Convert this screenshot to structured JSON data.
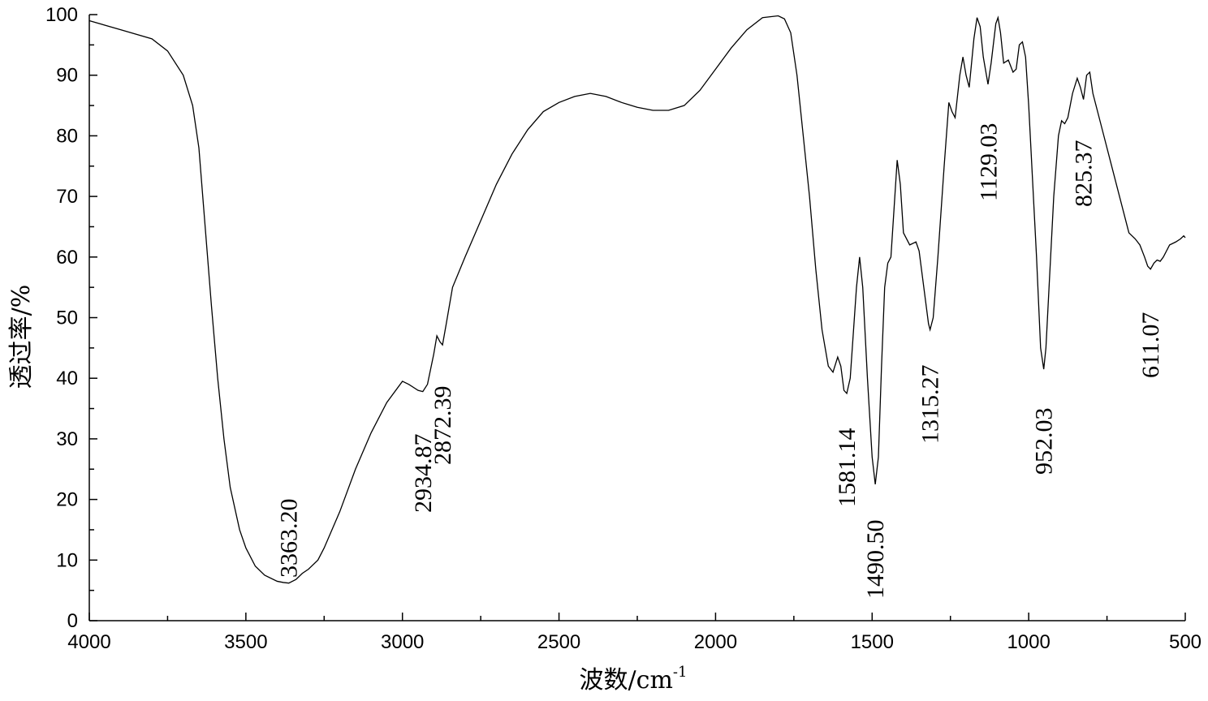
{
  "chart_data": {
    "type": "line",
    "xlabel": "波数/cm",
    "xlabel_superscript": "-1",
    "ylabel": "透过率/%",
    "xlim": [
      4000,
      500
    ],
    "ylim": [
      0,
      100
    ],
    "xticks": [
      4000,
      3500,
      3000,
      2500,
      2000,
      1500,
      1000,
      500
    ],
    "xminorticks": [
      3750,
      3250,
      2750,
      2250,
      1750,
      1250,
      750
    ],
    "yticks": [
      0,
      10,
      20,
      30,
      40,
      50,
      60,
      70,
      80,
      90,
      100
    ],
    "yminorticks": [
      5,
      15,
      25,
      35,
      45,
      55,
      65,
      75,
      85,
      95
    ],
    "color": "#000000",
    "x": [
      4000,
      3900,
      3800,
      3750,
      3700,
      3670,
      3650,
      3630,
      3610,
      3590,
      3570,
      3550,
      3520,
      3500,
      3470,
      3440,
      3400,
      3380,
      3363,
      3340,
      3320,
      3300,
      3270,
      3250,
      3200,
      3150,
      3100,
      3050,
      3000,
      2980,
      2950,
      2935,
      2920,
      2900,
      2890,
      2880,
      2872,
      2860,
      2840,
      2800,
      2750,
      2700,
      2650,
      2600,
      2550,
      2500,
      2450,
      2400,
      2350,
      2300,
      2250,
      2200,
      2150,
      2100,
      2050,
      2000,
      1950,
      1900,
      1850,
      1800,
      1780,
      1760,
      1740,
      1720,
      1700,
      1680,
      1660,
      1640,
      1625,
      1610,
      1600,
      1590,
      1581,
      1570,
      1550,
      1540,
      1530,
      1515,
      1500,
      1490,
      1480,
      1470,
      1460,
      1450,
      1440,
      1430,
      1420,
      1410,
      1400,
      1380,
      1360,
      1350,
      1335,
      1320,
      1315,
      1305,
      1290,
      1270,
      1255,
      1245,
      1235,
      1220,
      1210,
      1200,
      1190,
      1175,
      1165,
      1155,
      1145,
      1130,
      1120,
      1105,
      1098,
      1090,
      1080,
      1065,
      1050,
      1040,
      1030,
      1020,
      1010,
      1000,
      990,
      975,
      962,
      952,
      945,
      935,
      920,
      905,
      895,
      885,
      875,
      860,
      845,
      835,
      825,
      815,
      805,
      795,
      780,
      760,
      740,
      720,
      700,
      680,
      660,
      645,
      630,
      620,
      611,
      600,
      590,
      580,
      570,
      550,
      530,
      515,
      505,
      500
    ],
    "values": [
      99,
      97.5,
      96,
      94,
      90,
      85,
      78,
      65,
      52,
      40,
      30,
      22,
      15,
      12,
      9,
      7.5,
      6.5,
      6.3,
      6.2,
      6.8,
      7.8,
      8.5,
      10,
      12,
      18,
      25,
      31,
      36,
      39.5,
      39,
      38,
      37.8,
      39,
      44,
      47,
      46,
      45.5,
      49,
      55,
      60,
      66,
      72,
      77,
      81,
      84,
      85.5,
      86.5,
      87,
      86.5,
      85.5,
      84.7,
      84.2,
      84.2,
      85,
      87.5,
      91,
      94.5,
      97.5,
      99.5,
      99.8,
      99.3,
      97,
      90,
      80,
      70,
      58,
      48,
      42,
      41,
      43.5,
      42,
      38,
      37.5,
      40,
      55,
      60,
      55,
      40,
      27,
      22.5,
      27,
      42,
      55,
      59,
      60,
      68,
      76,
      72,
      64,
      62,
      62.5,
      61,
      55,
      49,
      48,
      50,
      60,
      75,
      85.5,
      84,
      83,
      90,
      93,
      90,
      88,
      96,
      99.5,
      98,
      93,
      88.5,
      92,
      98.5,
      99.5,
      97,
      92,
      92.5,
      90.5,
      91,
      95,
      95.5,
      93,
      85,
      75,
      60,
      45,
      41.5,
      45,
      55,
      70,
      80,
      82.5,
      82,
      83,
      87,
      89.5,
      88,
      86,
      90,
      90.5,
      87,
      84,
      80,
      76,
      72,
      68,
      64,
      63,
      62,
      60,
      58.5,
      58,
      59,
      59.5,
      59.3,
      60,
      62,
      62.5,
      63,
      63.5,
      63.2
    ],
    "annotations": [
      {
        "x": 3363.2,
        "label": "3363.20"
      },
      {
        "x": 2934.87,
        "label": "2934.87"
      },
      {
        "x": 2872.39,
        "label": "2872.39"
      },
      {
        "x": 1581.14,
        "label": "1581.14"
      },
      {
        "x": 1490.5,
        "label": "1490.50"
      },
      {
        "x": 1315.27,
        "label": "1315.27"
      },
      {
        "x": 1129.03,
        "label": "1129.03"
      },
      {
        "x": 952.03,
        "label": "952.03"
      },
      {
        "x": 825.37,
        "label": "825.37"
      },
      {
        "x": 611.07,
        "label": "611.07"
      }
    ]
  }
}
